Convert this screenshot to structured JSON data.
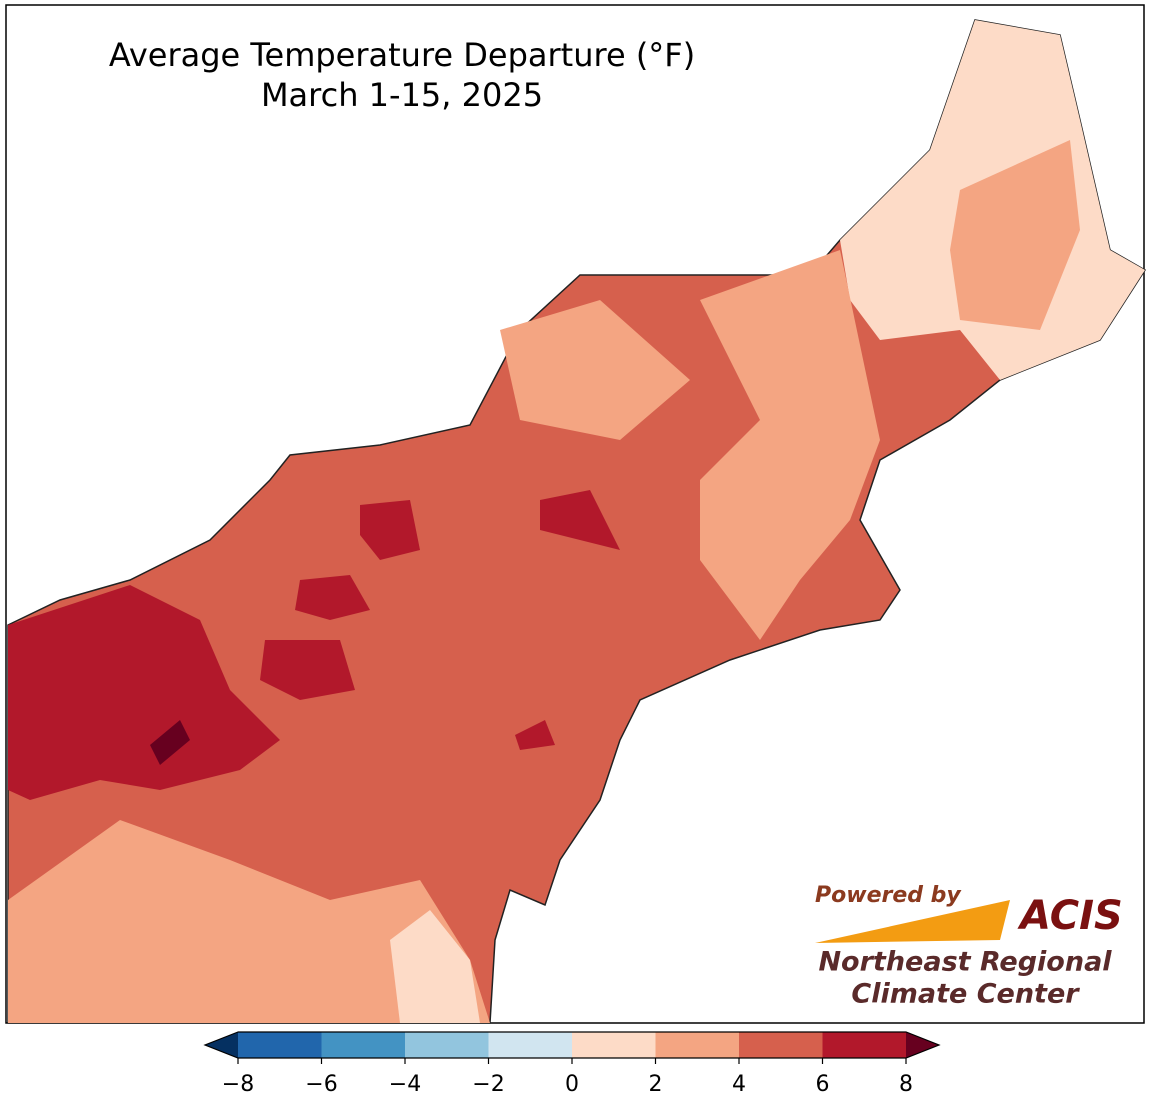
{
  "map": {
    "title": "Average Temperature Departure (°F)",
    "subtitle": "March 1-15, 2025",
    "colorbar": {
      "lim": [
        -8,
        8
      ],
      "ticks": [
        {
          "value": -8,
          "label": "−8"
        },
        {
          "value": -6,
          "label": "−6"
        },
        {
          "value": -4,
          "label": "−4"
        },
        {
          "value": -2,
          "label": "−2"
        },
        0,
        2,
        4,
        6,
        8
      ],
      "colors": [
        "#2166ac",
        "#4393c3",
        "#92c5de",
        "#d1e5f0",
        "#fddbc7",
        "#f4a582",
        "#d6604d",
        "#b2182b"
      ],
      "under_color": "#053061",
      "over_color": "#67001f"
    },
    "logo": {
      "powered": "Powered by",
      "name": "ACIS",
      "line1": "Northeast Regional",
      "line2": "Climate Center"
    }
  }
}
